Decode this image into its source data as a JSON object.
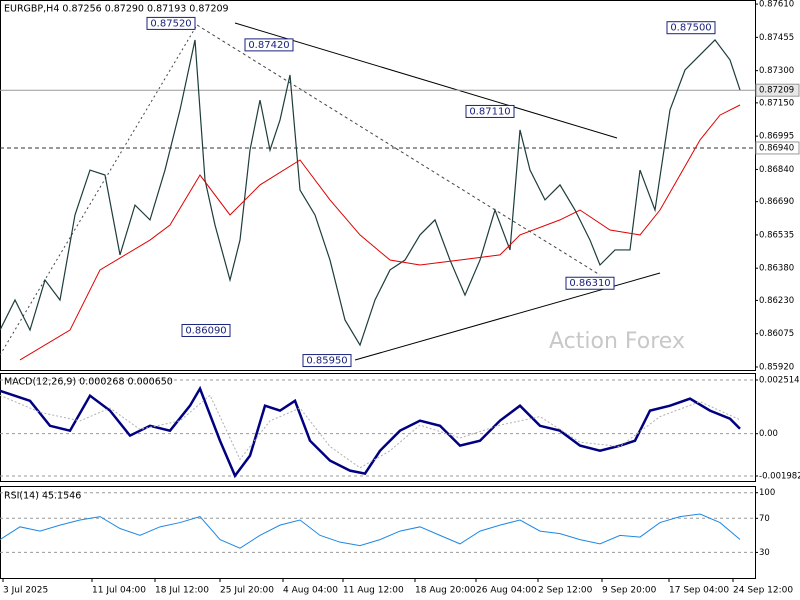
{
  "chart_data": [
    {
      "type": "line",
      "title": "EURGBP,H4 0.87256 0.87290 0.87193 0.87209",
      "watermark": "Action Forex",
      "xlim": [
        0,
        75.5
      ],
      "xticks": [
        {
          "value": 0.3,
          "label": "3 Jul 2025"
        },
        {
          "value": 9.2,
          "label": "11 Jul 04:00"
        },
        {
          "value": 15.5,
          "label": "18 Jul 12:00"
        },
        {
          "value": 22,
          "label": "25 Jul 20:00"
        },
        {
          "value": 28.3,
          "label": "4 Aug 04:00"
        },
        {
          "value": 34.3,
          "label": "11 Aug 12:00"
        },
        {
          "value": 41.5,
          "label": "18 Aug 20:00"
        },
        {
          "value": 47.6,
          "label": "26 Aug 04:00"
        },
        {
          "value": 53.8,
          "label": "2 Sep 12:00"
        },
        {
          "value": 60.2,
          "label": "9 Sep 20:00"
        },
        {
          "value": 66.9,
          "label": "17 Sep 04:00"
        },
        {
          "value": 73.3,
          "label": "24 Sep 12:00"
        }
      ],
      "ylim": [
        0.85906,
        0.87629
      ],
      "yticks": [
        {
          "value": 0.8761,
          "label": "0.87610"
        },
        0.87455,
        {
          "value": 0.873,
          "label": "0.87300"
        },
        {
          "value": 0.8715,
          "label": "0.87150"
        },
        0.86995,
        {
          "value": 0.8684,
          "label": "0.86840"
        },
        {
          "value": 0.8669,
          "label": "0.86690"
        },
        0.86535,
        {
          "value": 0.8638,
          "label": "0.86380"
        },
        {
          "value": 0.8623,
          "label": "0.86230"
        },
        0.86075,
        {
          "value": 0.8592,
          "label": "0.85920"
        }
      ],
      "grid": false,
      "levels": [
        {
          "value": 0.87209,
          "label": "0.87209",
          "style": "solid"
        },
        {
          "value": 0.8694,
          "label": "0.86940",
          "style": "dashed"
        }
      ],
      "annotations": [
        {
          "x": 19.5,
          "value": 0.8752,
          "label": "0.87520"
        },
        {
          "x": 29.3,
          "value": 0.8742,
          "label": "0.87420"
        },
        {
          "x": 51.4,
          "value": 0.8711,
          "label": "0.87110"
        },
        {
          "x": 61.4,
          "value": 0.8631,
          "label": "0.86310"
        },
        {
          "x": 23,
          "value": 0.8609,
          "label": "0.86090"
        },
        {
          "x": 35.1,
          "value": 0.8595,
          "label": "0.85950"
        },
        {
          "x": 71.5,
          "value": 0.875,
          "label": "0.87500"
        }
      ],
      "series": [
        {
          "color": "#1e3c3c",
          "width": 1.2,
          "x": [
            0,
            1.5,
            3,
            4.5,
            6,
            7.5,
            9,
            10.5,
            12,
            13.5,
            15,
            16.5,
            18,
            19.5,
            20.5,
            21.5,
            23,
            24,
            25,
            26,
            27,
            28,
            29,
            30,
            31.5,
            33,
            34.5,
            36,
            37.5,
            39,
            40.5,
            42,
            43.5,
            45,
            46.5,
            48,
            49.5,
            51,
            52,
            53,
            54.5,
            56,
            57.5,
            59,
            60,
            61.5,
            63,
            64,
            65.5,
            67,
            68.5,
            70,
            71.5,
            73,
            74
          ],
          "values": [
            0.86092,
            0.86232,
            0.86092,
            0.86325,
            0.86232,
            0.86628,
            0.86837,
            0.86814,
            0.86442,
            0.86674,
            0.86605,
            0.86837,
            0.87117,
            0.87443,
            0.86791,
            0.86581,
            0.86325,
            0.86511,
            0.8693,
            0.87163,
            0.8693,
            0.8707,
            0.8728,
            0.86744,
            0.86628,
            0.86418,
            0.86139,
            0.86022,
            0.86232,
            0.86372,
            0.86418,
            0.86535,
            0.86605,
            0.86418,
            0.86255,
            0.86418,
            0.86651,
            0.86465,
            0.87024,
            0.86837,
            0.86698,
            0.86768,
            0.86651,
            0.86511,
            0.86395,
            0.86465,
            0.86465,
            0.86837,
            0.86651,
            0.87117,
            0.87303,
            0.87373,
            0.87443,
            0.8735,
            0.8721
          ]
        },
        {
          "color": "#e00000",
          "width": 1,
          "x": [
            2,
            7,
            10,
            15,
            17,
            20,
            23,
            26,
            30,
            33,
            36,
            39,
            42,
            46,
            50,
            52,
            56,
            58,
            61,
            64,
            66,
            68,
            70,
            72,
            74
          ],
          "values": [
            0.85953,
            0.86092,
            0.86372,
            0.86511,
            0.86581,
            0.86814,
            0.86628,
            0.86768,
            0.86884,
            0.86698,
            0.86535,
            0.86418,
            0.86395,
            0.86418,
            0.86442,
            0.86535,
            0.86605,
            0.86651,
            0.86558,
            0.86535,
            0.86651,
            0.86814,
            0.86977,
            0.87093,
            0.8714
          ]
        }
      ]
    },
    {
      "type": "line",
      "title": "MACD(12,26,9) 0.000268 0.000650",
      "xlim": [
        0,
        75.5
      ],
      "ylim": [
        -0.002216,
        0.002842
      ],
      "yticks": [
        0.002514,
        {
          "value": 0,
          "label": "0.00"
        },
        -0.001982
      ],
      "grid": true,
      "series": [
        {
          "color": "#000080",
          "width": 2.5,
          "x": [
            0,
            3,
            5,
            7,
            9,
            11,
            13,
            15,
            17,
            19,
            20,
            22,
            23.5,
            25,
            26.5,
            28,
            29.5,
            31,
            33,
            35,
            36.5,
            38,
            40,
            42,
            44,
            46,
            48,
            50,
            52,
            54,
            56,
            58,
            60,
            62,
            63.5,
            65,
            67,
            69,
            71,
            73,
            74
          ],
          "values": [
            0.00201,
            0.00154,
            0.00037,
            0.00014,
            0.00178,
            0.00108,
            -9e-05,
            0.00037,
            0.00014,
            0.00131,
            0.00211,
            -0.00033,
            -0.00197,
            -0.00103,
            0.00131,
            0.00108,
            0.00154,
            -0.00033,
            -0.00126,
            -0.00173,
            -0.00187,
            -0.0008,
            0.00014,
            0.00061,
            0.00037,
            -0.00056,
            -0.00033,
            0.00061,
            0.00131,
            0.00037,
            0.00014,
            -0.00056,
            -0.0008,
            -0.00056,
            -0.00033,
            0.00108,
            0.00131,
            0.00164,
            0.00108,
            0.0007,
            0.00023
          ]
        },
        {
          "color": "#b0b0b0",
          "width": 1,
          "dashed": true,
          "x": [
            0,
            4,
            8,
            11,
            14,
            18,
            21,
            24,
            27,
            30,
            33,
            36,
            39,
            42,
            46,
            50,
            54,
            58,
            62,
            66,
            70,
            74
          ],
          "values": [
            0.0018,
            0.001,
            0.0006,
            0.0012,
            0.0002,
            0.0006,
            0.0018,
            -0.0012,
            0.0006,
            0.0012,
            -0.0006,
            -0.0016,
            -0.0008,
            0.0004,
            -0.0002,
            0.0004,
            0.0008,
            -0.0004,
            -0.0006,
            0.0008,
            0.0015,
            0.00065
          ]
        }
      ]
    },
    {
      "type": "line",
      "title": "RSI(14) 45.1546",
      "xlim": [
        0,
        75.5
      ],
      "ylim": [
        0,
        106.7
      ],
      "yticks": [
        100,
        70,
        30
      ],
      "grid": true,
      "series": [
        {
          "color": "#1e88e5",
          "width": 1,
          "x": [
            0,
            2,
            4,
            6,
            8,
            10,
            12,
            14,
            16,
            18,
            20,
            22,
            24,
            26,
            28,
            30,
            32,
            34,
            36,
            38,
            40,
            42,
            44,
            46,
            48,
            50,
            52,
            54,
            56,
            58,
            60,
            62,
            64,
            66,
            68,
            70,
            72,
            74
          ],
          "values": [
            45,
            60,
            55,
            62,
            68,
            72,
            58,
            50,
            60,
            65,
            72,
            45,
            35,
            50,
            62,
            68,
            50,
            42,
            38,
            45,
            55,
            60,
            50,
            40,
            55,
            62,
            68,
            55,
            52,
            45,
            40,
            50,
            48,
            65,
            72,
            75,
            65,
            45.1546
          ]
        }
      ]
    }
  ]
}
